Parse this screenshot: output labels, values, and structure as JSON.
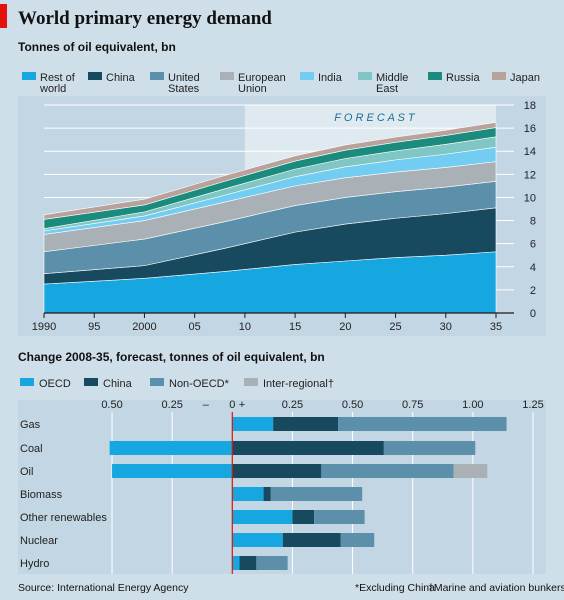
{
  "header": {
    "title": "World primary energy demand",
    "subtitle_top": "Tonnes of oil equivalent, bn",
    "subtitle_bottom": "Change 2008-35, forecast, tonnes of oil equivalent, bn"
  },
  "footer": {
    "source": "Source: International Energy Agency",
    "footnote_non_oecd": "*Excluding China",
    "footnote_interregional": "†Marine and aviation bunkers"
  },
  "chart_data": [
    {
      "type": "area",
      "stacked": true,
      "title": "Tonnes of oil equivalent, bn",
      "x": [
        1990,
        2000,
        2008,
        2015,
        2020,
        2025,
        2030,
        2035
      ],
      "x_tick_labels": [
        "1990",
        "95",
        "2000",
        "05",
        "10",
        "15",
        "20",
        "25",
        "30",
        "35"
      ],
      "x_tick_values": [
        1990,
        1995,
        2000,
        2005,
        2010,
        2015,
        2020,
        2025,
        2030,
        2035
      ],
      "xlim": [
        1990,
        2035
      ],
      "ylim": [
        0,
        18
      ],
      "y_ticks": [
        0,
        2,
        4,
        6,
        8,
        10,
        12,
        14,
        16,
        18
      ],
      "y_axis_side": "right",
      "grid": true,
      "legend_position": "top",
      "annotation": {
        "label": "F O R E C A S T",
        "from": 2010,
        "to": 2035
      },
      "series": [
        {
          "name": "Rest of world",
          "legend_label": [
            "Rest of",
            "world"
          ],
          "color": "#16a6e0",
          "values": [
            2.5,
            3.0,
            3.6,
            4.2,
            4.5,
            4.8,
            5.0,
            5.3
          ]
        },
        {
          "name": "China",
          "legend_label": [
            "China"
          ],
          "color": "#17495f",
          "values": [
            0.9,
            1.1,
            2.0,
            2.8,
            3.2,
            3.4,
            3.6,
            3.8
          ]
        },
        {
          "name": "United States",
          "legend_label": [
            "United",
            "States"
          ],
          "color": "#5c90aa",
          "values": [
            1.9,
            2.3,
            2.3,
            2.3,
            2.3,
            2.3,
            2.3,
            2.3
          ]
        },
        {
          "name": "European Union",
          "legend_label": [
            "European",
            "Union"
          ],
          "color": "#a9b1b7",
          "values": [
            1.5,
            1.6,
            1.7,
            1.7,
            1.7,
            1.7,
            1.7,
            1.7
          ]
        },
        {
          "name": "India",
          "legend_label": [
            "India"
          ],
          "color": "#73cdf3",
          "values": [
            0.3,
            0.4,
            0.6,
            0.8,
            0.95,
            1.05,
            1.15,
            1.25
          ]
        },
        {
          "name": "Middle East",
          "legend_label": [
            "Middle",
            "East"
          ],
          "color": "#7fc6c5",
          "values": [
            0.2,
            0.35,
            0.55,
            0.65,
            0.72,
            0.78,
            0.85,
            0.9
          ]
        },
        {
          "name": "Russia",
          "legend_label": [
            "Russia"
          ],
          "color": "#1b8b7e",
          "values": [
            0.8,
            0.6,
            0.65,
            0.7,
            0.72,
            0.74,
            0.77,
            0.8
          ]
        },
        {
          "name": "Japan",
          "legend_label": [
            "Japan"
          ],
          "color": "#b9a29c",
          "values": [
            0.4,
            0.5,
            0.5,
            0.45,
            0.45,
            0.45,
            0.45,
            0.45
          ]
        }
      ]
    },
    {
      "type": "bar",
      "orientation": "horizontal",
      "stacked": true,
      "title": "Change 2008-35, forecast, tonnes of oil equivalent, bn",
      "categories": [
        "Gas",
        "Coal",
        "Oil",
        "Biomass",
        "Other renewables",
        "Nuclear",
        "Hydro"
      ],
      "xlim": [
        -0.55,
        1.25
      ],
      "x_ticks": [
        {
          "value": -0.5,
          "label": "0.50"
        },
        {
          "value": -0.25,
          "label": "0.25"
        },
        {
          "value": -0.11,
          "label": "–"
        },
        {
          "value": 0,
          "label": "0"
        },
        {
          "value": 0.04,
          "label": "+"
        },
        {
          "value": 0.25,
          "label": "0.25"
        },
        {
          "value": 0.5,
          "label": "0.50"
        },
        {
          "value": 0.75,
          "label": "0.75"
        },
        {
          "value": 1.0,
          "label": "1.00"
        },
        {
          "value": 1.25,
          "label": "1.25"
        }
      ],
      "x_axis_side": "top",
      "grid": true,
      "legend_position": "top",
      "series": [
        {
          "name": "OECD",
          "color": "#16a6e0",
          "values": [
            0.17,
            -0.51,
            -0.5,
            0.13,
            0.25,
            0.21,
            0.03
          ]
        },
        {
          "name": "China",
          "color": "#17495f",
          "values": [
            0.27,
            0.63,
            0.37,
            0.03,
            0.09,
            0.24,
            0.07
          ]
        },
        {
          "name": "Non-OECD*",
          "color": "#5c90aa",
          "values": [
            0.7,
            0.38,
            0.55,
            0.38,
            0.21,
            0.14,
            0.13
          ]
        },
        {
          "name": "Inter-regional†",
          "color": "#a9b1b7",
          "values": [
            0,
            0,
            0.14,
            0,
            0,
            0,
            0
          ]
        }
      ]
    }
  ]
}
